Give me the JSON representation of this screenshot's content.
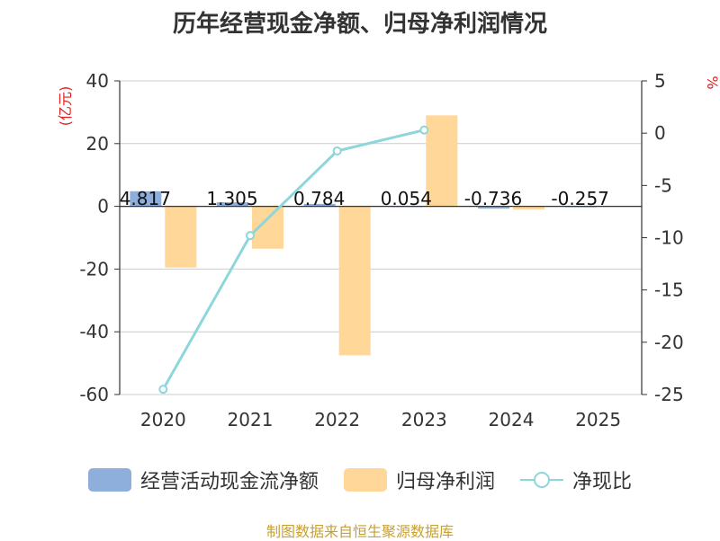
{
  "chart_data": {
    "type": "bar",
    "title": "历年经营现金净额、归母净利润情况",
    "categories": [
      "2020",
      "2021",
      "2022",
      "2023",
      "2024",
      "2025"
    ],
    "y_left": {
      "unit_label": "(亿元)",
      "min": -60,
      "max": 40,
      "ticks": [
        40,
        20,
        0,
        -20,
        -40,
        -60
      ]
    },
    "y_right": {
      "unit_label": "%",
      "min": -25,
      "max": 5,
      "ticks": [
        5,
        0,
        -5,
        -10,
        -15,
        -20,
        -25
      ]
    },
    "series": [
      {
        "name": "经营活动现金流净额",
        "kind": "bar",
        "axis": "left",
        "color": "#8eaedb",
        "values": [
          4.817,
          1.305,
          0.784,
          0.054,
          -0.736,
          -0.257
        ],
        "labels": [
          "4.817",
          "1.305",
          "0.784",
          "0.054",
          "-0.736",
          "-0.257"
        ]
      },
      {
        "name": "归母净利润",
        "kind": "bar",
        "axis": "left",
        "color": "#ffd799",
        "values": [
          -19.5,
          -13.5,
          -47.5,
          29,
          -1.0,
          null
        ]
      },
      {
        "name": "净现比",
        "kind": "line",
        "axis": "right",
        "color": "#8dd6db",
        "values": [
          -24.5,
          -9.8,
          -1.7,
          0.3,
          null,
          null
        ]
      }
    ]
  },
  "legend": {
    "cash": "经营活动现金流净额",
    "profit": "归母净利润",
    "ratio": "净现比"
  },
  "title": "历年经营现金净额、归母净利润情况",
  "source": "制图数据来自恒生聚源数据库",
  "colors": {
    "cash": "#8eaedb",
    "profit": "#ffd799",
    "ratio": "#8dd6db",
    "unit": "#e02020"
  }
}
